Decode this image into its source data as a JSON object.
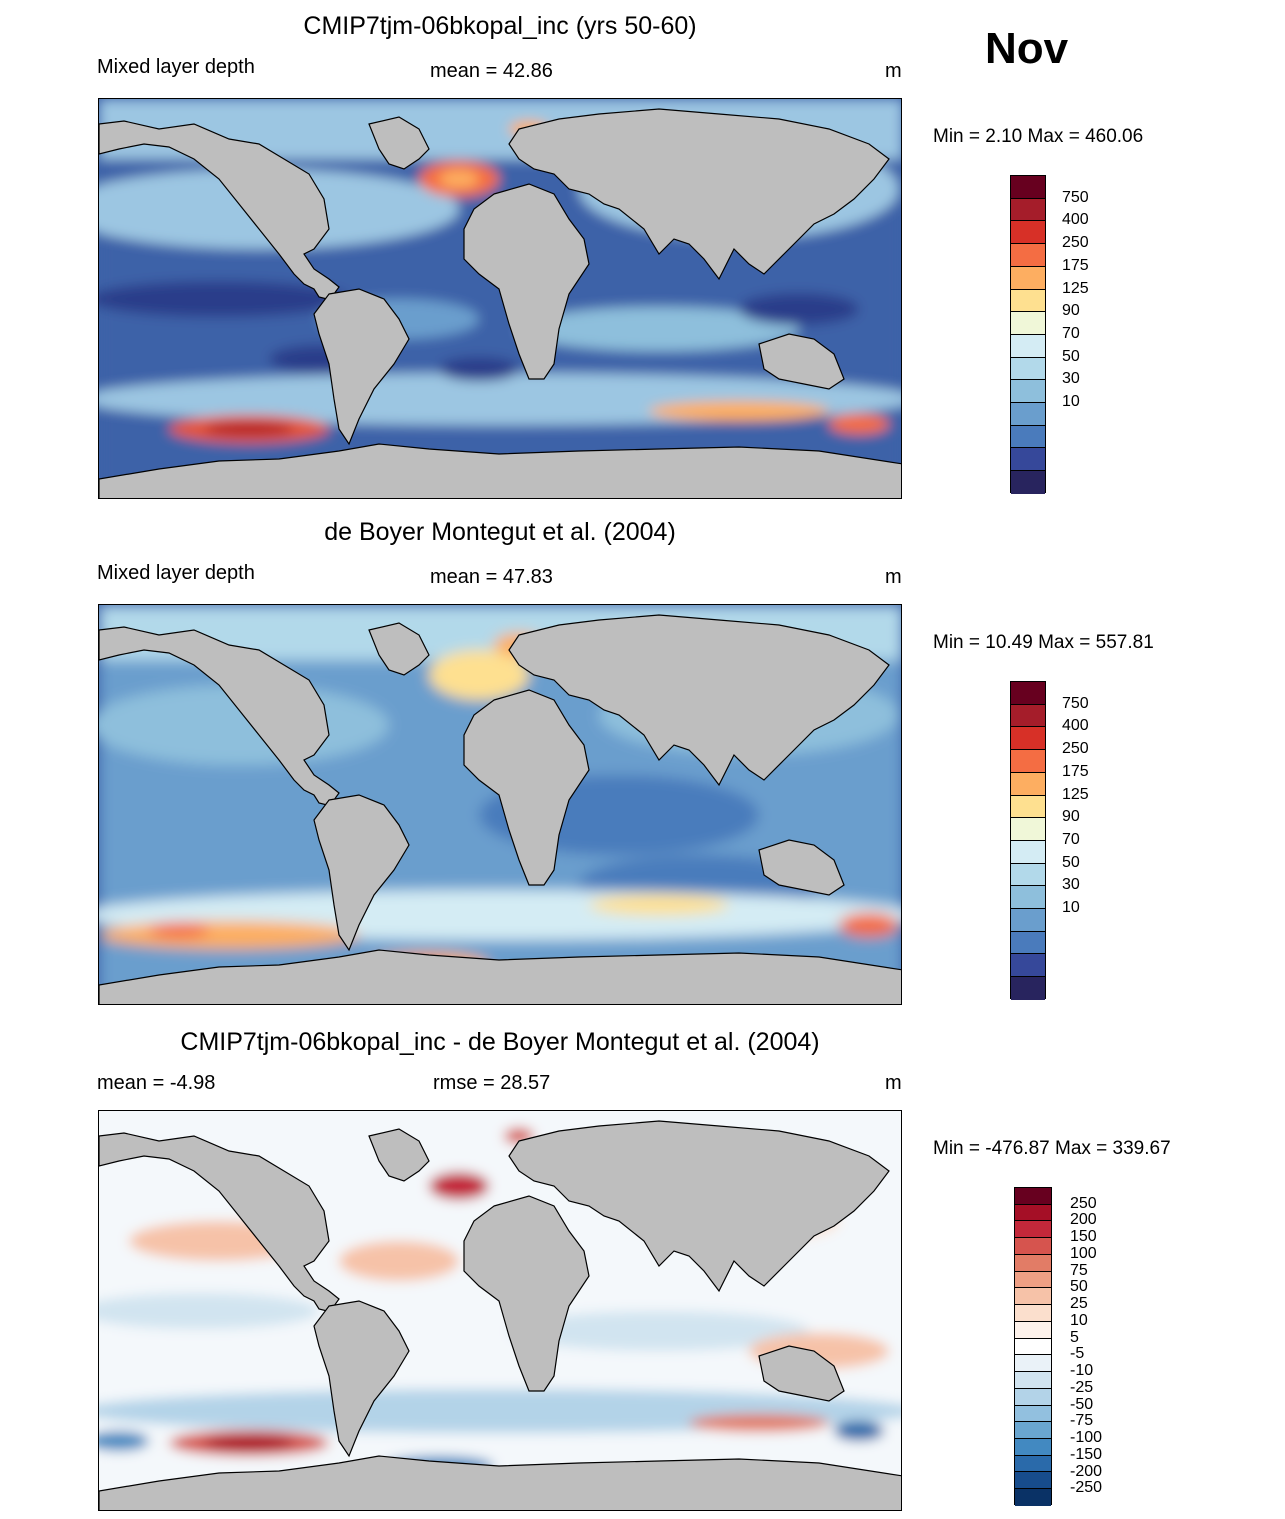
{
  "month": "Nov",
  "units": "m",
  "panels": [
    {
      "title": "CMIP7tjm-06bkopal_inc (yrs 50-60)",
      "left_label": "Mixed layer depth",
      "center_label": "mean =  42.86",
      "right_label": "m",
      "minmax": "Min =   2.10 Max = 460.06",
      "colorbar": {
        "labels": [
          "750",
          "400",
          "250",
          "175",
          "125",
          "90",
          "70",
          "50",
          "30",
          "10"
        ],
        "colors": [
          "#67001f",
          "#a51d2a",
          "#d73027",
          "#f46d43",
          "#fdae61",
          "#fee090",
          "#f0f7d8",
          "#d4ecf4",
          "#b2d9ea",
          "#8ebfdc",
          "#6a9ecd",
          "#4a7bbc",
          "#36489a",
          "#28245e"
        ]
      }
    },
    {
      "title": "de Boyer Montegut et al. (2004)",
      "left_label": "Mixed layer depth",
      "center_label": "mean =  47.83",
      "right_label": "m",
      "minmax": "Min =  10.49 Max = 557.81",
      "colorbar": {
        "labels": [
          "750",
          "400",
          "250",
          "175",
          "125",
          "90",
          "70",
          "50",
          "30",
          "10"
        ],
        "colors": [
          "#67001f",
          "#a51d2a",
          "#d73027",
          "#f46d43",
          "#fdae61",
          "#fee090",
          "#f0f7d8",
          "#d4ecf4",
          "#b2d9ea",
          "#8ebfdc",
          "#6a9ecd",
          "#4a7bbc",
          "#36489a",
          "#28245e"
        ]
      }
    },
    {
      "title": "CMIP7tjm-06bkopal_inc - de Boyer Montegut et al. (2004)",
      "left_label": "mean =  -4.98",
      "center_label": "rmse =  28.57",
      "right_label": "m",
      "minmax": "Min = -476.87 Max = 339.67",
      "colorbar": {
        "labels": [
          "250",
          "200",
          "150",
          "100",
          "75",
          "50",
          "25",
          "10",
          "5",
          "-5",
          "-10",
          "-25",
          "-50",
          "-75",
          "-100",
          "-150",
          "-200",
          "-250"
        ],
        "colors": [
          "#67001f",
          "#a50f26",
          "#c3283a",
          "#d6544e",
          "#e27c66",
          "#ee9f84",
          "#f6c2a8",
          "#fbdfcd",
          "#fdf2eb",
          "#ffffff",
          "#eaf2f8",
          "#d1e4f0",
          "#b3d3e8",
          "#92c0df",
          "#6aa6d0",
          "#4289c1",
          "#2a6aaa",
          "#174c8c",
          "#0a3266"
        ]
      }
    }
  ]
}
